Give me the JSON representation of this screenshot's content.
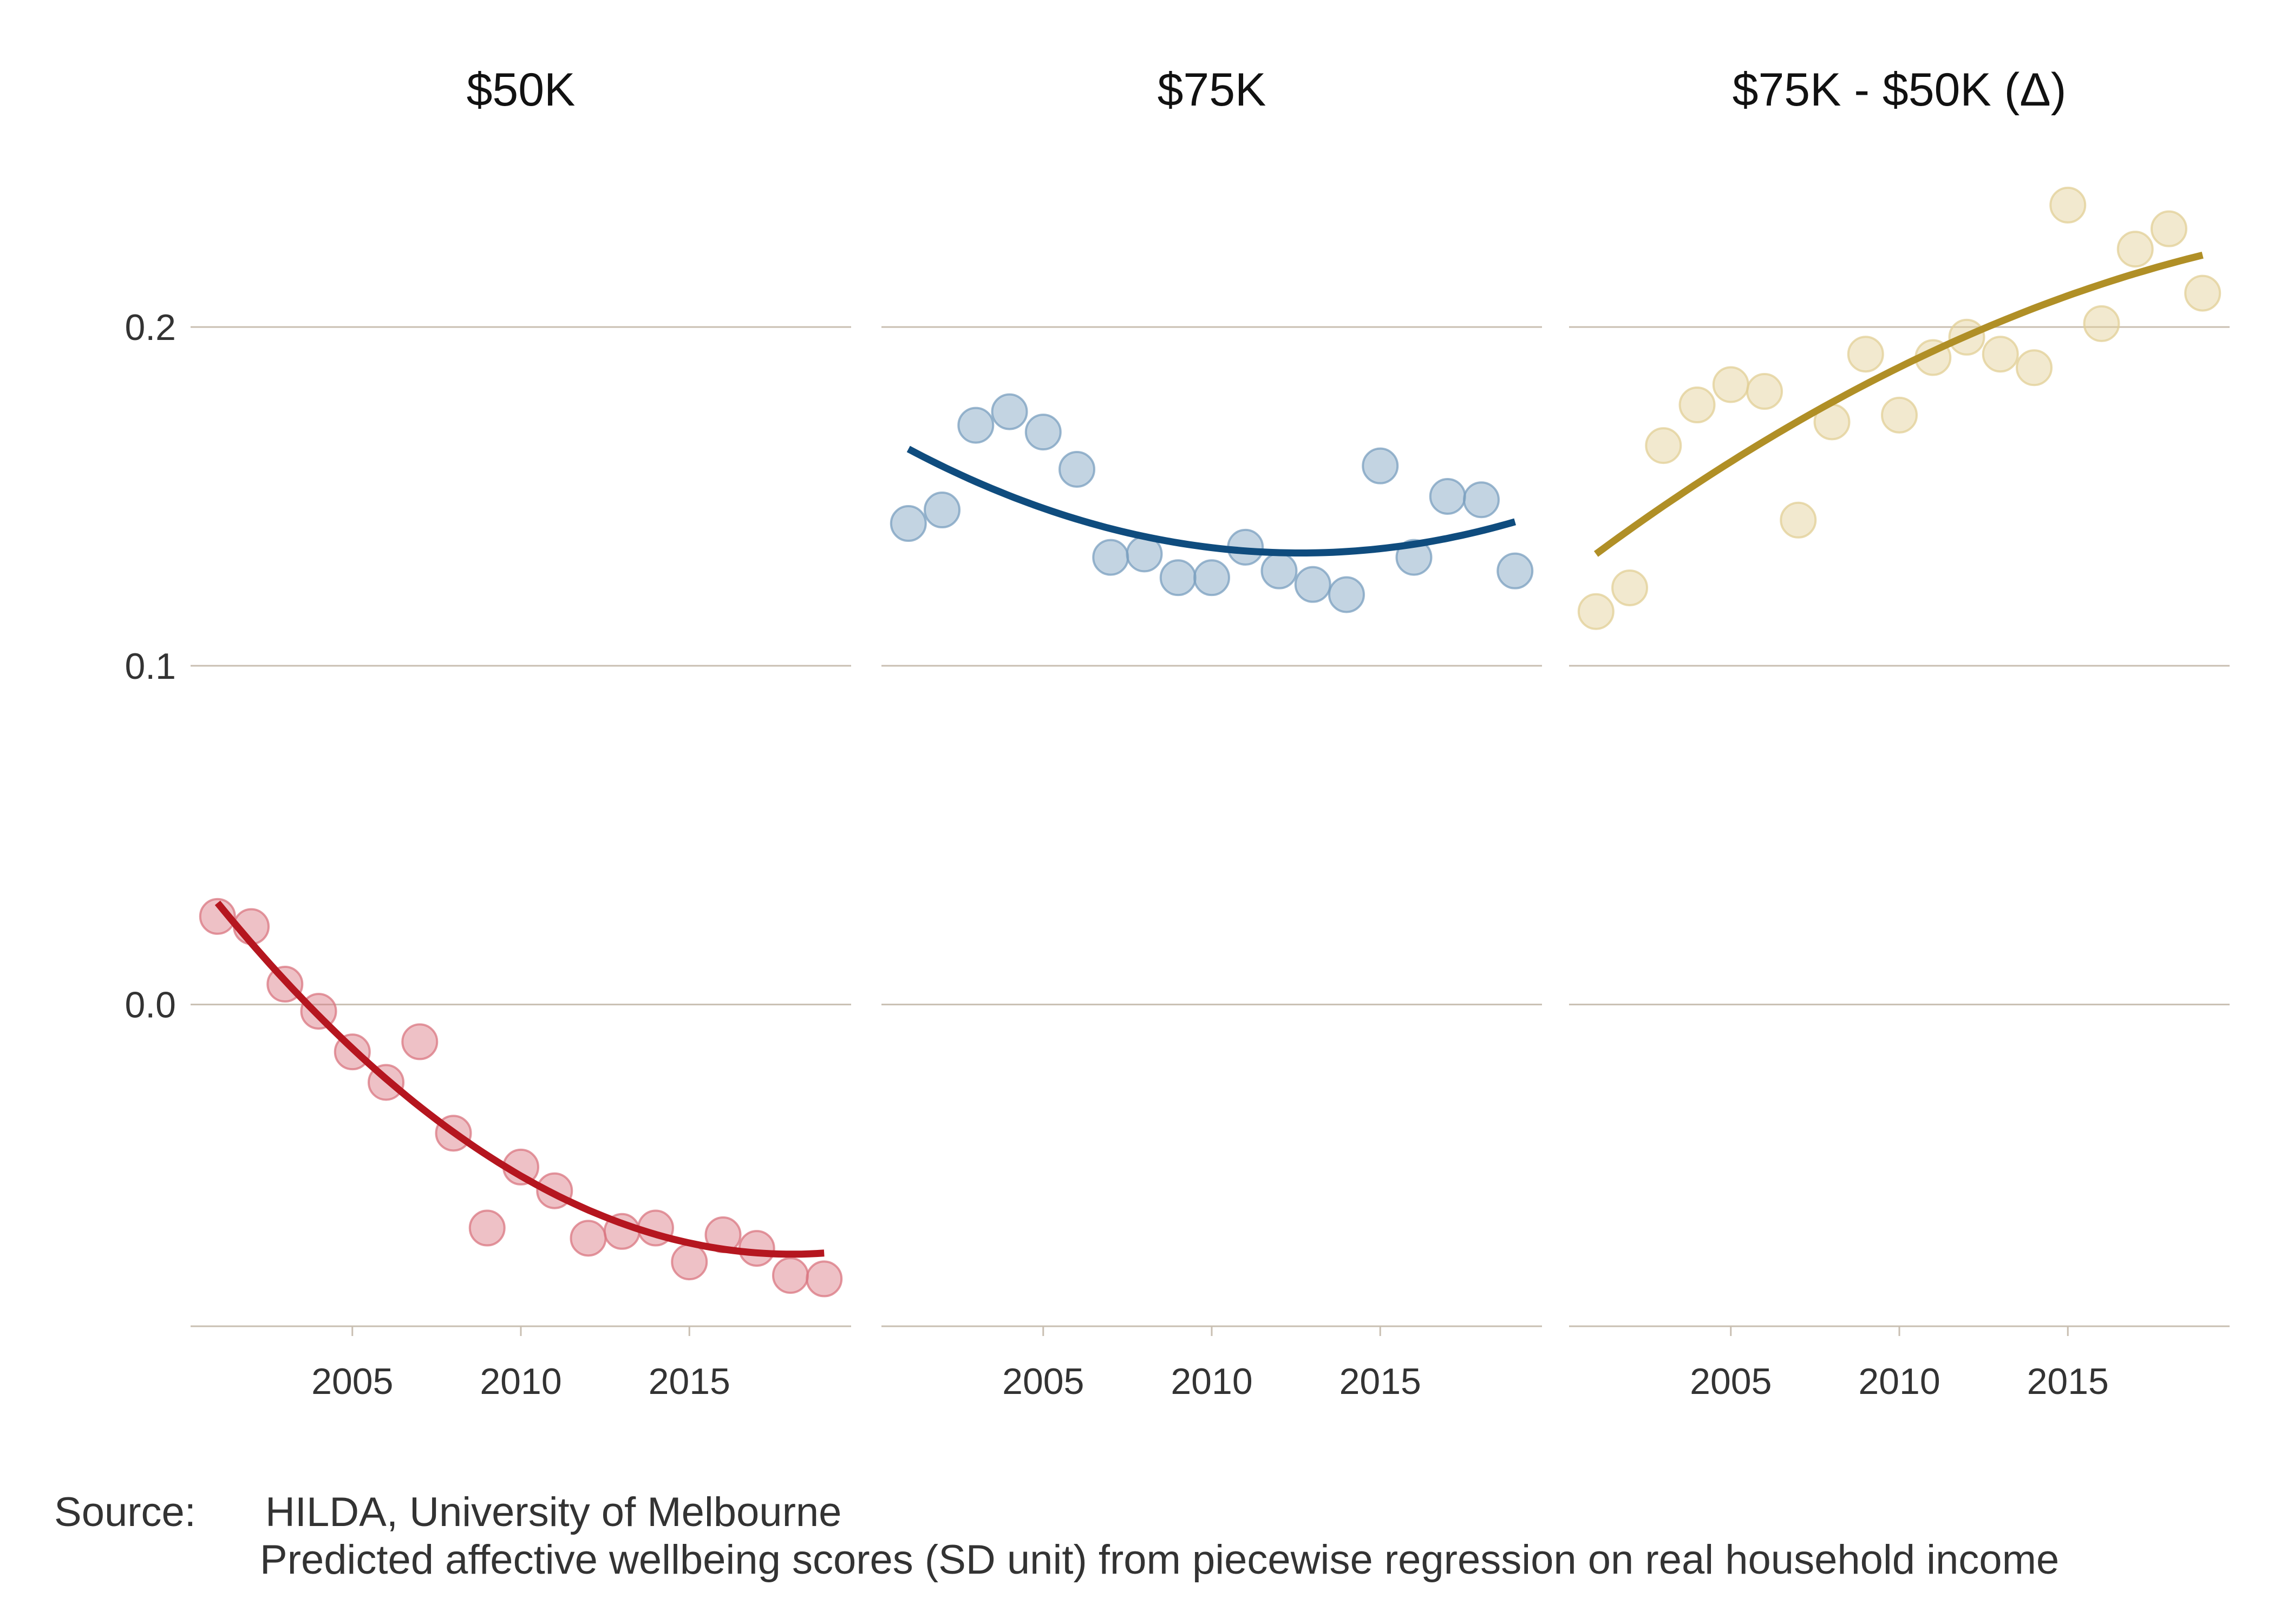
{
  "chart_data": {
    "type": "scatter",
    "y_axis": {
      "ylim": [
        -0.095,
        0.255
      ],
      "ticks": [
        0.0,
        0.1,
        0.2
      ],
      "tick_labels": [
        "0.0",
        "0.1",
        "0.2"
      ],
      "grid": true
    },
    "x_axis": {
      "xlim": [
        2000.2,
        2019.8
      ],
      "ticks": [
        2005,
        2010,
        2015
      ],
      "tick_labels": [
        "2005",
        "2010",
        "2015"
      ]
    },
    "panels": [
      {
        "title": "$50K",
        "color": "#b5161f",
        "point_color": "#d97680",
        "x": [
          2001,
          2002,
          2003,
          2004,
          2005,
          2006,
          2007,
          2008,
          2009,
          2010,
          2011,
          2012,
          2013,
          2014,
          2015,
          2016,
          2017,
          2018,
          2019
        ],
        "points": [
          0.026,
          0.023,
          0.006,
          -0.002,
          -0.014,
          -0.023,
          -0.011,
          -0.038,
          -0.066,
          -0.048,
          -0.055,
          -0.069,
          -0.067,
          -0.066,
          -0.076,
          -0.068,
          -0.072,
          -0.08,
          -0.081
        ],
        "trend_coeffs": [
          0.03,
          -0.01217,
          0.000357
        ],
        "trend_origin": 2001
      },
      {
        "title": "$75K",
        "color": "#0f4c7e",
        "point_color": "#7a9fbf",
        "x": [
          2001,
          2002,
          2003,
          2004,
          2005,
          2006,
          2007,
          2008,
          2009,
          2010,
          2011,
          2012,
          2013,
          2014,
          2015,
          2016,
          2017,
          2018,
          2019
        ],
        "points": [
          0.142,
          0.146,
          0.171,
          0.175,
          0.169,
          0.158,
          0.132,
          0.133,
          0.126,
          0.126,
          0.135,
          0.128,
          0.124,
          0.121,
          0.159,
          0.132,
          0.15,
          0.149,
          0.128
        ],
        "trend_coeffs": [
          0.164,
          -0.00528,
          0.000227
        ],
        "trend_origin": 2001
      },
      {
        "title": "$75K - $50K (Δ)",
        "color": "#b08f26",
        "point_color": "#e2cf95",
        "x": [
          2001,
          2002,
          2003,
          2004,
          2005,
          2006,
          2007,
          2008,
          2009,
          2010,
          2011,
          2012,
          2013,
          2014,
          2015,
          2016,
          2017,
          2018,
          2019
        ],
        "points": [
          0.116,
          0.123,
          0.165,
          0.177,
          0.183,
          0.181,
          0.143,
          0.172,
          0.192,
          0.174,
          0.191,
          0.197,
          0.192,
          0.188,
          0.236,
          0.201,
          0.223,
          0.229,
          0.21
        ],
        "trend_coeffs": [
          0.133,
          0.00735,
          -0.000136
        ],
        "trend_origin": 2001
      }
    ]
  },
  "footer": {
    "source_label": "Source:",
    "source_text": "HILDA, University of Melbourne",
    "note": "Predicted affective wellbeing scores (SD unit) from piecewise regression on real household income"
  }
}
